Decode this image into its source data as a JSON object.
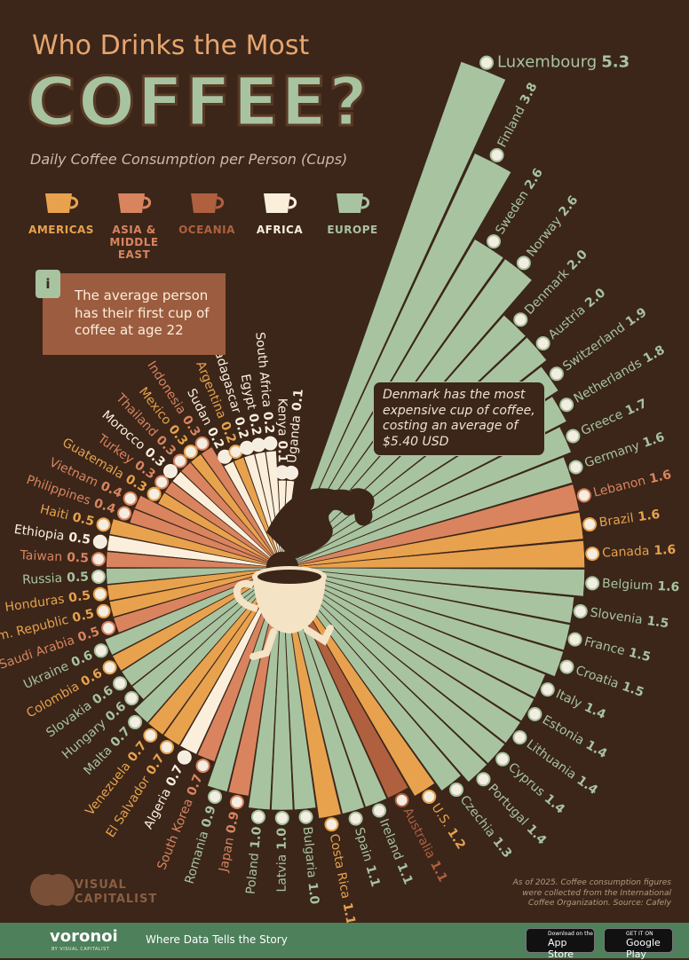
{
  "chart_data": {
    "type": "radial_bar",
    "title": "Who Drinks the Most",
    "title_emphasis": "COFFEE?",
    "subtitle": "Daily Coffee Consumption per Person (Cups)",
    "legend": [
      {
        "name": "AMERICAS",
        "color": "#e8a24e"
      },
      {
        "name": "ASIA & MIDDLE EAST",
        "color": "#d9845f"
      },
      {
        "name": "OCEANIA",
        "color": "#b0603f"
      },
      {
        "name": "AFRICA",
        "color": "#fbefdc"
      },
      {
        "name": "EUROPE",
        "color": "#a8c3a0"
      }
    ],
    "categories": [
      "Luxembourg",
      "Finland",
      "Sweden",
      "Norway",
      "Denmark",
      "Austria",
      "Switzerland",
      "Netherlands",
      "Greece",
      "Germany",
      "Lebanon",
      "Brazil",
      "Canada",
      "Belgium",
      "Slovenia",
      "France",
      "Croatia",
      "Italy",
      "Estonia",
      "Lithuania",
      "Cyprus",
      "Portugal",
      "Czechia",
      "U.S.",
      "Australia",
      "Ireland",
      "Spain",
      "Costa Rica",
      "Bulgaria",
      "Latvia",
      "Poland",
      "Japan",
      "Romania",
      "South Korea",
      "Algeria",
      "El Salvador",
      "Venezuela",
      "Malta",
      "Hungary",
      "Slovakia",
      "Colombia",
      "Ukraine",
      "Saudi Arabia",
      "Dom. Republic",
      "Honduras",
      "Russia",
      "Taiwan",
      "Ethiopia",
      "Haiti",
      "Philippines",
      "Vietnam",
      "Guatemala",
      "Turkey",
      "Morocco",
      "Thailand",
      "Mexico",
      "Indonesia",
      "Sudan",
      "Argentina",
      "Madagascar",
      "Egypt",
      "South Africa",
      "Kenya",
      "Uganda"
    ],
    "values": [
      5.3,
      3.8,
      2.6,
      2.6,
      2.0,
      2.0,
      1.9,
      1.8,
      1.7,
      1.6,
      1.6,
      1.6,
      1.6,
      1.6,
      1.5,
      1.5,
      1.5,
      1.4,
      1.4,
      1.4,
      1.4,
      1.4,
      1.3,
      1.2,
      1.1,
      1.1,
      1.1,
      1.1,
      1.0,
      1.0,
      1.0,
      0.9,
      0.9,
      0.7,
      0.7,
      0.7,
      0.7,
      0.7,
      0.6,
      0.6,
      0.6,
      0.6,
      0.5,
      0.5,
      0.5,
      0.5,
      0.5,
      0.5,
      0.5,
      0.4,
      0.4,
      0.3,
      0.3,
      0.3,
      0.3,
      0.3,
      0.3,
      0.2,
      0.2,
      0.2,
      0.2,
      0.2,
      0.1,
      0.1
    ],
    "value_labels": [
      "5.3",
      "3.8",
      "2.6",
      "2.6",
      "2.0",
      "2.0",
      "1.9",
      "1.8",
      "1.7",
      "1.6",
      "1.6",
      "1.6",
      "1.6",
      "1.6",
      "1.5",
      "1.5",
      "1.5",
      "1.4",
      "1.4",
      "1.4",
      "1.4",
      "1.4",
      "1.3",
      "1.2",
      "1.1",
      "1.1",
      "1.1",
      "1.1",
      "1.0",
      "1.0",
      "1.0",
      "0.9",
      "0.9",
      "0.7",
      "0.7",
      "0.7",
      "0.7",
      "0.7",
      "0.6",
      "0.6",
      "0.6",
      "0.6",
      "0.5",
      "0.5",
      "0.5",
      "0.5",
      "0.5",
      "0.5",
      "0.5",
      "0.4",
      "0.4",
      "0.3",
      "0.3",
      "0.3",
      "0.3",
      "0.3",
      "0.3",
      "0.2",
      "0.2",
      "0.2",
      "0.2",
      "0.2",
      "0.1",
      "0.1"
    ],
    "colors": [
      "#a8c3a0",
      "#a8c3a0",
      "#a8c3a0",
      "#a8c3a0",
      "#a8c3a0",
      "#a8c3a0",
      "#a8c3a0",
      "#a8c3a0",
      "#a8c3a0",
      "#a8c3a0",
      "#d9845f",
      "#e8a24e",
      "#e8a24e",
      "#a8c3a0",
      "#a8c3a0",
      "#a8c3a0",
      "#a8c3a0",
      "#a8c3a0",
      "#a8c3a0",
      "#a8c3a0",
      "#a8c3a0",
      "#a8c3a0",
      "#a8c3a0",
      "#e8a24e",
      "#b0603f",
      "#a8c3a0",
      "#a8c3a0",
      "#e8a24e",
      "#a8c3a0",
      "#a8c3a0",
      "#a8c3a0",
      "#d9845f",
      "#a8c3a0",
      "#d9845f",
      "#fbefdc",
      "#e8a24e",
      "#e8a24e",
      "#a8c3a0",
      "#a8c3a0",
      "#a8c3a0",
      "#e8a24e",
      "#a8c3a0",
      "#d9845f",
      "#e8a24e",
      "#e8a24e",
      "#a8c3a0",
      "#d9845f",
      "#fbefdc",
      "#e8a24e",
      "#d9845f",
      "#d9845f",
      "#e8a24e",
      "#d9845f",
      "#fbefdc",
      "#d9845f",
      "#e8a24e",
      "#d9845f",
      "#fbefdc",
      "#e8a24e",
      "#fbefdc",
      "#fbefdc",
      "#fbefdc",
      "#fbefdc",
      "#fbefdc"
    ],
    "annotations": [
      "The average person has their first cup of coffee at age 22",
      "Denmark has the most expensive cup of coffee, costing an average of $5.40 USD"
    ],
    "footnote": "As of 2025. Coffee consumption figures were collected from the International Coffee Organization. Source: Cafely"
  },
  "brand": "VISUAL CAPITALIST",
  "footer": {
    "logo": "voronoi",
    "logo_sub": "BY VISUAL CAPITALIST",
    "tagline": "Where Data Tells the Story",
    "app_store": [
      "Download on the",
      "App Store"
    ],
    "google_play": [
      "GET IT ON",
      "Google Play"
    ]
  }
}
